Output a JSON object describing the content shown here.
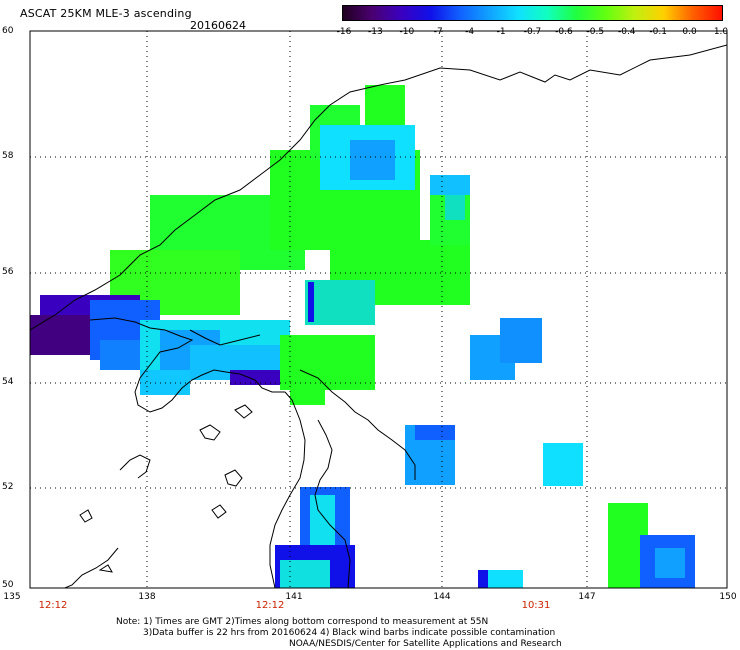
{
  "header": {
    "title": "ASCAT 25KM MLE-3 ascending",
    "date": "20160624"
  },
  "colorbar": {
    "labels": [
      "-16",
      "-13",
      "-10",
      "-7",
      "-4",
      "-1",
      "-0.7",
      "-0.6",
      "-0.5",
      "-0.4",
      "-0.1",
      "0.0",
      "1.0"
    ],
    "colors": [
      "#200020",
      "#4a0070",
      "#3a00c0",
      "#1010e8",
      "#1060ff",
      "#10a0ff",
      "#10e0ff",
      "#10ffc0",
      "#20ff40",
      "#60ff10",
      "#c0f010",
      "#ffd000",
      "#ff6000",
      "#ff1000"
    ]
  },
  "map": {
    "lat_labels": [
      "60",
      "58",
      "56",
      "54",
      "52",
      "50"
    ],
    "lon_labels": [
      "135",
      "138",
      "141",
      "144",
      "147",
      "150"
    ],
    "time_labels": [
      "12:12",
      "12:12",
      "10:31"
    ]
  },
  "notes": {
    "line1": "Note: 1) Times are GMT 2)Times along bottom correspond to measurement at 55N",
    "line2": "3)Data buffer is 22 hrs from 20160624 4) Black wind barbs indicate possible contamination",
    "line3": "NOAA/NESDIS/Center for Satellite Applications and Research"
  },
  "colors": {
    "green": "#20ff20",
    "cyan": "#10ffd0",
    "lightblue": "#10a0ff",
    "blue": "#1060ff",
    "deepblue": "#1010e0",
    "indigo": "#3a00c0",
    "purple": "#400080",
    "time_label": "#cc2200"
  }
}
